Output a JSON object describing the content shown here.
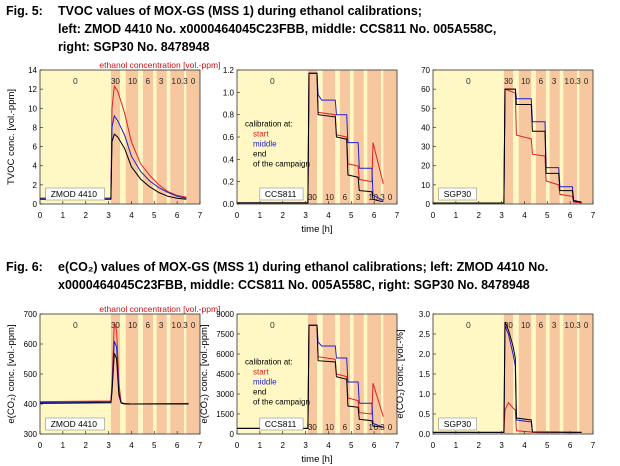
{
  "captions": {
    "fig5": {
      "label": "Fig. 5:",
      "line1": "TVOC values of MOX-GS (MSS 1) during ethanol calibrations;",
      "line2": "left: ZMOD 4410 No. x0000464045C23FBB, middle: CCS811 No. 005A558C,",
      "line3": "right: SGP30 No. 8478948"
    },
    "fig6": {
      "label": "Fig. 6:",
      "line1": "e(CO₂) values of MOX-GS (MSS 1) during ethanol calibrations; left: ZMOD 4410 No.",
      "line2": "x0000464045C23FBB, middle: CCS811 No. 005A558C, right: SGP30 No. 8478948"
    }
  },
  "colors": {
    "phase_light": "#fff8c4",
    "phase_dark": "#f7c89f",
    "start": "#e02020",
    "middle": "#2020d0",
    "end": "#000000",
    "conc_label": "#d01010"
  },
  "shared": {
    "time_label": "time [h]",
    "x_ticks": [
      "0",
      "1",
      "2",
      "3",
      "4",
      "5",
      "6",
      "7"
    ],
    "conc_title": "ethanol concentration [vol.-ppm]",
    "conc_steps": [
      "30",
      "10",
      "6",
      "3",
      "1",
      "0.3",
      "0"
    ],
    "conc_baseline": "0",
    "legend": {
      "title": "calibration at:",
      "start": "start",
      "middle": "middle",
      "end": "end",
      "end2_fig5": "of the campaign",
      "end2_fig6": "of the campaign"
    }
  },
  "chart_data": [
    {
      "figure": "Fig. 5",
      "panel": "left",
      "type": "line",
      "sensor": "ZMOD 4410",
      "ylabel": "TVOC conc. [vol.-ppm]",
      "xlabel": "",
      "x_range": [
        0,
        7
      ],
      "ylim": [
        0,
        14
      ],
      "y_ticks": [
        "0",
        "2",
        "4",
        "6",
        "8",
        "10",
        "12",
        "14"
      ],
      "series": [
        {
          "name": "start",
          "x": [
            0,
            3.1,
            3.15,
            3.25,
            3.4,
            3.7,
            4.0,
            4.4,
            4.8,
            5.2,
            5.6,
            6.0,
            6.4
          ],
          "values": [
            0.6,
            0.6,
            10,
            12.3,
            11.8,
            9.5,
            6.5,
            4.2,
            3,
            2,
            1.3,
            0.9,
            0.7
          ]
        },
        {
          "name": "middle",
          "x": [
            0,
            3.1,
            3.15,
            3.25,
            3.4,
            3.7,
            4.0,
            4.4,
            4.8,
            5.2,
            5.6,
            6.0,
            6.4
          ],
          "values": [
            0.6,
            0.6,
            8,
            9.2,
            8.7,
            7.2,
            5,
            3.4,
            2.4,
            1.7,
            1.2,
            0.8,
            0.6
          ]
        },
        {
          "name": "end",
          "x": [
            0,
            3.1,
            3.15,
            3.25,
            3.4,
            3.7,
            4.0,
            4.4,
            4.8,
            5.2,
            5.6,
            6.0,
            6.4
          ],
          "values": [
            0.5,
            0.5,
            6.5,
            7.3,
            7,
            5.8,
            3.9,
            2.6,
            1.8,
            1.2,
            0.8,
            0.6,
            0.5
          ]
        }
      ]
    },
    {
      "figure": "Fig. 5",
      "panel": "middle",
      "type": "line",
      "sensor": "CCS811",
      "ylabel": "",
      "xlabel": "time [h]",
      "x_range": [
        0,
        7
      ],
      "ylim": [
        0,
        1.2
      ],
      "y_ticks": [
        "0.0",
        "0.2",
        "0.4",
        "0.6",
        "0.8",
        "1.0",
        "1.2"
      ],
      "series": [
        {
          "name": "start",
          "x": [
            0,
            3.1,
            3.15,
            3.5,
            3.55,
            4.3,
            4.35,
            4.8,
            4.85,
            5.3,
            5.35,
            5.9,
            5.95,
            6.4
          ],
          "values": [
            0.01,
            0.01,
            1.17,
            1.17,
            0.82,
            0.8,
            0.62,
            0.6,
            0.36,
            0.34,
            0.22,
            0.2,
            0.55,
            0.18
          ]
        },
        {
          "name": "middle",
          "x": [
            0,
            3.1,
            3.15,
            3.5,
            3.55,
            3.7,
            4.3,
            4.35,
            4.8,
            4.85,
            5.3,
            5.35,
            5.9,
            5.95,
            6.4
          ],
          "values": [
            0.01,
            0.01,
            1.17,
            1.17,
            0.98,
            0.93,
            0.93,
            0.8,
            0.8,
            0.55,
            0.55,
            0.32,
            0.32,
            0.08,
            0.03
          ]
        },
        {
          "name": "end",
          "x": [
            0,
            3.1,
            3.15,
            3.5,
            3.55,
            4.3,
            4.35,
            4.8,
            4.85,
            5.3,
            5.35,
            5.9,
            5.95,
            6.4
          ],
          "values": [
            0.01,
            0.01,
            1.17,
            1.17,
            0.8,
            0.78,
            0.6,
            0.58,
            0.26,
            0.24,
            0.12,
            0.11,
            0.04,
            0.02
          ]
        }
      ]
    },
    {
      "figure": "Fig. 5",
      "panel": "right",
      "type": "line",
      "sensor": "SGP30",
      "ylabel": "",
      "xlabel": "",
      "x_range": [
        0,
        7
      ],
      "ylim": [
        0,
        70
      ],
      "y_ticks": [
        "0",
        "10",
        "20",
        "30",
        "40",
        "50",
        "60",
        "70"
      ],
      "series": [
        {
          "name": "start",
          "x": [
            0,
            3.1,
            3.15,
            3.6,
            3.65,
            4.3,
            4.35,
            4.9,
            4.95,
            5.5,
            5.55,
            6.1,
            6.15,
            6.5
          ],
          "values": [
            0.5,
            0.5,
            60,
            58,
            36,
            34,
            26,
            25,
            12,
            10,
            5,
            4,
            1,
            0.5
          ]
        },
        {
          "name": "middle",
          "x": [
            0,
            3.1,
            3.15,
            3.6,
            3.65,
            4.3,
            4.35,
            4.9,
            4.95,
            5.5,
            5.55,
            6.1,
            6.15,
            6.5
          ],
          "values": [
            0.5,
            0.5,
            60,
            60,
            55,
            55,
            43,
            43,
            19,
            19,
            9,
            9,
            2,
            1
          ]
        },
        {
          "name": "end",
          "x": [
            0,
            3.1,
            3.15,
            3.6,
            3.65,
            4.3,
            4.35,
            4.9,
            4.95,
            5.5,
            5.55,
            6.1,
            6.15,
            6.5
          ],
          "values": [
            0.5,
            0.5,
            60,
            60,
            52,
            52,
            38,
            38,
            16,
            16,
            7,
            7,
            1.5,
            1
          ]
        }
      ]
    },
    {
      "figure": "Fig. 6",
      "panel": "left",
      "type": "line",
      "sensor": "ZMOD 4410",
      "ylabel": "e(CO₂) conc. [vol.-ppm]",
      "xlabel": "",
      "x_range": [
        0,
        7
      ],
      "ylim": [
        300,
        700
      ],
      "y_ticks": [
        "300",
        "400",
        "500",
        "600",
        "700"
      ],
      "series": [
        {
          "name": "start",
          "x": [
            0,
            3.1,
            3.15,
            3.25,
            3.35,
            3.45,
            3.55,
            3.7,
            4.0,
            6.5
          ],
          "values": [
            408,
            410,
            470,
            670,
            645,
            470,
            405,
            402,
            400,
            402
          ]
        },
        {
          "name": "middle",
          "x": [
            0,
            3.1,
            3.15,
            3.25,
            3.35,
            3.45,
            3.55,
            3.7,
            4.0,
            6.5
          ],
          "values": [
            405,
            407,
            450,
            610,
            590,
            440,
            404,
            401,
            400,
            401
          ]
        },
        {
          "name": "end",
          "x": [
            0,
            3.1,
            3.15,
            3.25,
            3.35,
            3.45,
            3.55,
            3.7,
            4.0,
            6.5
          ],
          "values": [
            402,
            404,
            440,
            570,
            550,
            430,
            403,
            400,
            400,
            400
          ]
        }
      ]
    },
    {
      "figure": "Fig. 6",
      "panel": "middle",
      "type": "line",
      "sensor": "CCS811",
      "ylabel": "e(CO₂) conc. [vol.-ppm]",
      "xlabel": "time [h]",
      "x_range": [
        0,
        7
      ],
      "ylim": [
        0,
        9000
      ],
      "y_ticks": [
        "0",
        "1500",
        "3000",
        "4500",
        "6000",
        "7500",
        "9000"
      ],
      "series": [
        {
          "name": "start",
          "x": [
            0,
            3.1,
            3.15,
            3.5,
            3.55,
            4.3,
            4.35,
            4.8,
            4.85,
            5.3,
            5.35,
            5.9,
            5.95,
            6.4
          ],
          "values": [
            420,
            420,
            8150,
            8150,
            5800,
            5600,
            4500,
            4300,
            2700,
            2500,
            1600,
            1500,
            3800,
            1300
          ]
        },
        {
          "name": "middle",
          "x": [
            0,
            3.1,
            3.15,
            3.5,
            3.55,
            3.7,
            4.3,
            4.35,
            4.8,
            4.85,
            5.3,
            5.35,
            5.9,
            5.95,
            6.4
          ],
          "values": [
            420,
            420,
            8150,
            8150,
            6900,
            6600,
            6600,
            5700,
            5700,
            3900,
            3900,
            2300,
            2300,
            800,
            500
          ]
        },
        {
          "name": "end",
          "x": [
            0,
            3.1,
            3.15,
            3.5,
            3.55,
            4.3,
            4.35,
            4.8,
            4.85,
            5.3,
            5.35,
            5.9,
            5.95,
            6.4
          ],
          "values": [
            420,
            420,
            8150,
            8150,
            5500,
            5400,
            4300,
            4100,
            2100,
            2000,
            1100,
            1000,
            600,
            500
          ]
        }
      ]
    },
    {
      "figure": "Fig. 6",
      "panel": "right",
      "type": "line",
      "sensor": "SGP30",
      "ylabel": "e(CO₂) conc. [vol.-%]",
      "xlabel": "",
      "x_range": [
        0,
        7
      ],
      "ylim": [
        0,
        3.0
      ],
      "y_ticks": [
        "0.0",
        "0.5",
        "1.0",
        "1.5",
        "2.0",
        "2.5",
        "3.0"
      ],
      "series": [
        {
          "name": "start",
          "x": [
            0,
            3.1,
            3.15,
            3.3,
            3.5,
            3.6,
            3.65,
            4.3,
            4.35,
            6.5
          ],
          "values": [
            0.04,
            0.04,
            0.6,
            0.78,
            0.65,
            0.6,
            0.08,
            0.05,
            0.04,
            0.04
          ]
        },
        {
          "name": "middle",
          "x": [
            0,
            3.1,
            3.15,
            3.3,
            3.5,
            3.6,
            3.65,
            4.3,
            4.35,
            6.5
          ],
          "values": [
            0.04,
            0.04,
            2.7,
            2.5,
            2.0,
            1.7,
            0.35,
            0.3,
            0.05,
            0.04
          ]
        },
        {
          "name": "end",
          "x": [
            0,
            3.1,
            3.15,
            3.3,
            3.5,
            3.6,
            3.65,
            4.3,
            4.35,
            6.5
          ],
          "values": [
            0.04,
            0.04,
            2.8,
            2.6,
            2.2,
            1.9,
            0.4,
            0.35,
            0.05,
            0.04
          ]
        }
      ]
    }
  ]
}
